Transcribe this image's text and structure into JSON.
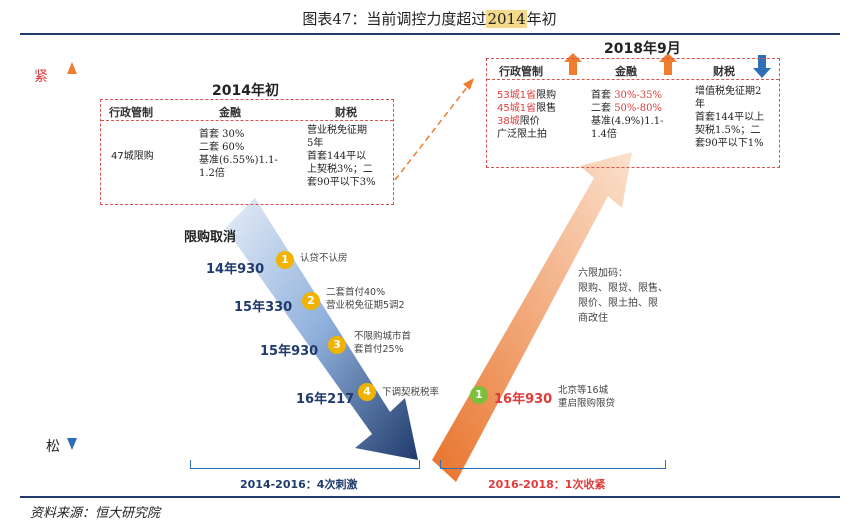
{
  "title": {
    "prefix": "图表47：当前调控力度超过",
    "year": "2014",
    "suffix": "年初"
  },
  "axis": {
    "top_label": "紧",
    "bottom_label": "松"
  },
  "box2014": {
    "heading": "2014年初",
    "col_headers": [
      "行政管制",
      "金融",
      "财税"
    ],
    "admin": "47城限购",
    "finance": "首套 30%\n二套 60%\n基准(6.55%)1.1-\n1.2倍",
    "tax": "营业税免征期\n5年\n首套144平以\n上契税3%；二\n套90平以下3%"
  },
  "box2018": {
    "heading": "2018年9月",
    "col_headers": [
      "行政管制",
      "金融",
      "财税"
    ],
    "admin_lines": [
      {
        "red": "53城1省",
        "black": "限购"
      },
      {
        "red": "45城1省",
        "black": "限售"
      },
      {
        "red": "38城",
        "black": "限价"
      },
      {
        "red": "",
        "black": "广泛限土拍"
      }
    ],
    "finance_lines": [
      {
        "black": "首套 ",
        "red": "30%-35%"
      },
      {
        "black": "二套 ",
        "red": "50%-80%"
      },
      {
        "black": "基准(4.9%)1.1-",
        "red": ""
      },
      {
        "black": "1.4倍",
        "red": ""
      }
    ],
    "tax": "增值税免征期2\n年\n首套144平以上\n契税1.5%；二\n套90平以下1%"
  },
  "easing": {
    "label": "限购取消",
    "steps": [
      {
        "num": "1",
        "date": "14年930",
        "note": "认贷不认房"
      },
      {
        "num": "2",
        "date": "15年330",
        "note": "二套首付40%\n营业税免征期5调2"
      },
      {
        "num": "3",
        "date": "15年930",
        "note": "不限购城市首\n套首付25%"
      },
      {
        "num": "4",
        "date": "16年217",
        "note": "下调契税税率"
      }
    ],
    "bracket_label": "2014-2016：4次刺激"
  },
  "tightening": {
    "six_limits": "六限加码：\n限购、限贷、限售、\n限价、限土拍、限\n商改住",
    "step": {
      "num": "1",
      "date": "16年930",
      "note": "北京等16城\n重启限购限贷"
    },
    "bracket_label": "2016-2018：1次收紧"
  },
  "source": "资料来源：恒大研究院",
  "colors": {
    "navy": "#1f3a6b",
    "orange": "#ee7d2f",
    "blue": "#2f6fb8",
    "red": "#e03a3a",
    "yellow": "#f0b400",
    "green": "#7cbf3a"
  }
}
